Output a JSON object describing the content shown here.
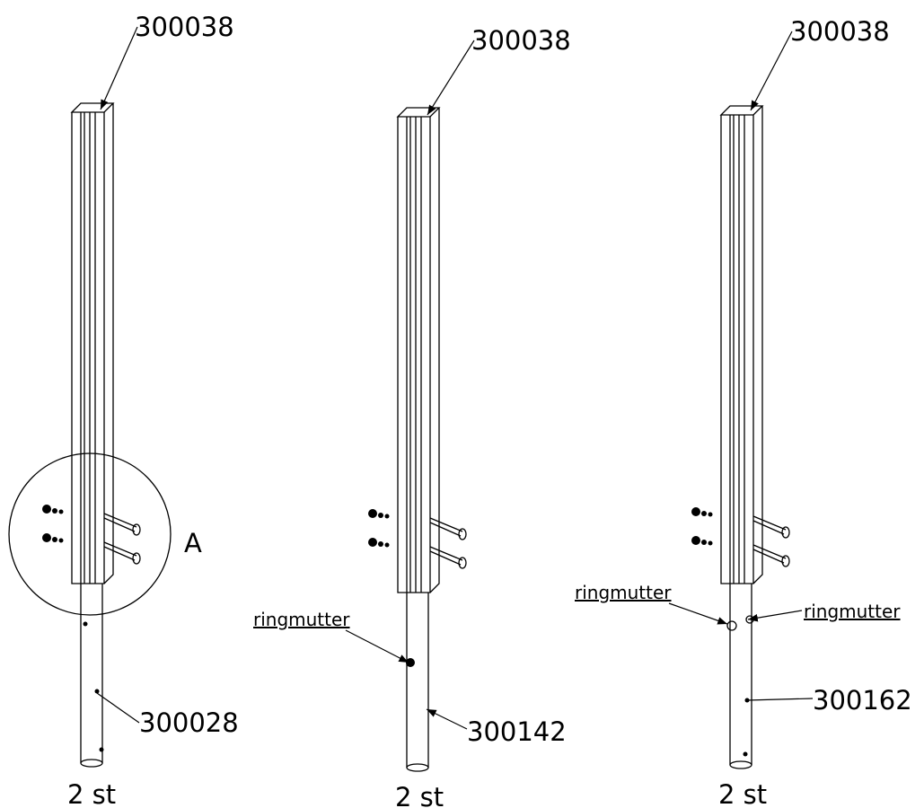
{
  "assemblies": [
    {
      "top_part": "300038",
      "bottom_part": "300028",
      "quantity": "2 st",
      "detail_label": "A"
    },
    {
      "top_part": "300038",
      "bottom_part": "300142",
      "quantity": "2 st",
      "nut_labels": [
        "ringmutter"
      ]
    },
    {
      "top_part": "300038",
      "bottom_part": "300162",
      "quantity": "2 st",
      "nut_labels": [
        "ringmutter",
        "ringmutter"
      ]
    }
  ]
}
